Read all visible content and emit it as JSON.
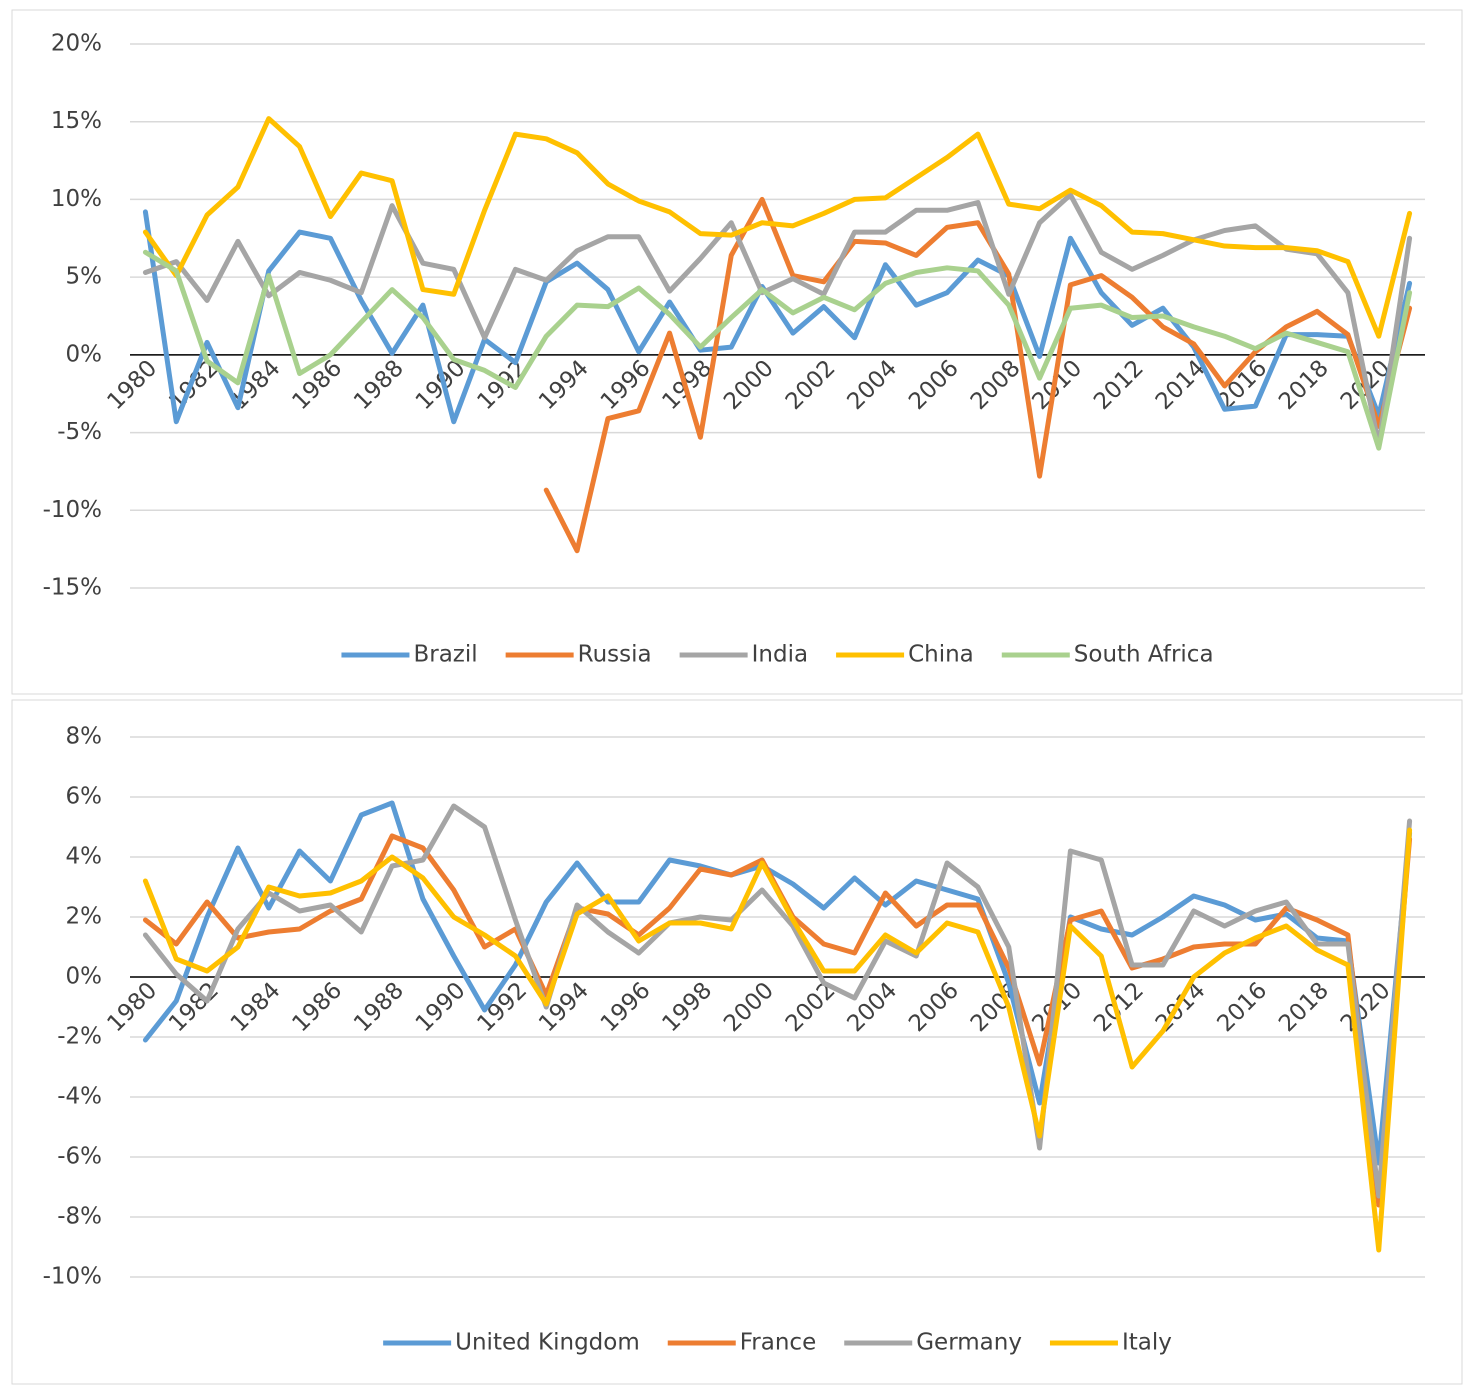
{
  "chart_data": [
    {
      "type": "line",
      "grid": true,
      "legend": "bottom",
      "categories": [
        "1980",
        null,
        "1982",
        null,
        "1984",
        null,
        "1986",
        null,
        "1988",
        null,
        "1990",
        null,
        "1992",
        null,
        "1994",
        null,
        "1996",
        null,
        "1998",
        null,
        "2000",
        null,
        "2002",
        null,
        "2004",
        null,
        "2006",
        null,
        "2008",
        null,
        "2010",
        null,
        "2012",
        null,
        "2014",
        null,
        "2016",
        null,
        "2018",
        null,
        "2020",
        null
      ],
      "ylim": [
        -15,
        20
      ],
      "yticks": [
        {
          "value": -15,
          "label": "-15%"
        },
        {
          "value": -10,
          "label": "-10%"
        },
        {
          "value": -5,
          "label": "-5%"
        },
        {
          "value": 0,
          "label": "0%"
        },
        {
          "value": 5,
          "label": "5%"
        },
        {
          "value": 10,
          "label": "10%"
        },
        {
          "value": 15,
          "label": "15%"
        },
        {
          "value": 20,
          "label": "20%"
        }
      ],
      "series": [
        {
          "name": "Brazil",
          "color": "#5b9bd5",
          "values": [
            9.2,
            -4.3,
            0.8,
            -3.4,
            5.4,
            7.9,
            7.5,
            3.5,
            0.1,
            3.2,
            -4.3,
            1.0,
            -0.5,
            4.7,
            5.9,
            4.2,
            0.2,
            3.4,
            0.3,
            0.5,
            4.4,
            1.4,
            3.1,
            1.1,
            5.8,
            3.2,
            4.0,
            6.1,
            5.1,
            -0.1,
            7.5,
            4.0,
            1.9,
            3.0,
            0.5,
            -3.5,
            -3.3,
            1.3,
            1.3,
            1.2,
            -3.9,
            4.6
          ]
        },
        {
          "name": "Russia",
          "color": "#ed7d31",
          "values": [
            null,
            null,
            null,
            null,
            null,
            null,
            null,
            null,
            null,
            null,
            null,
            null,
            null,
            -8.7,
            -12.6,
            -4.1,
            -3.6,
            1.4,
            -5.3,
            6.4,
            10.0,
            5.1,
            4.7,
            7.3,
            7.2,
            6.4,
            8.2,
            8.5,
            5.2,
            -7.8,
            4.5,
            5.1,
            3.7,
            1.8,
            0.7,
            -2.0,
            0.2,
            1.8,
            2.8,
            1.3,
            -4.6,
            3.0
          ]
        },
        {
          "name": "India",
          "color": "#a5a5a5",
          "values": [
            5.3,
            6.0,
            3.5,
            7.3,
            3.8,
            5.3,
            4.8,
            4.0,
            9.6,
            5.9,
            5.5,
            1.1,
            5.5,
            4.8,
            6.7,
            7.6,
            7.6,
            4.1,
            6.2,
            8.5,
            4.0,
            4.9,
            3.9,
            7.9,
            7.9,
            9.3,
            9.3,
            9.8,
            3.9,
            8.5,
            10.3,
            6.6,
            5.5,
            6.4,
            7.4,
            8.0,
            8.3,
            6.8,
            6.5,
            4.0,
            -5.8,
            7.5
          ]
        },
        {
          "name": "China",
          "color": "#ffc000",
          "values": [
            7.9,
            5.1,
            9.0,
            10.8,
            15.2,
            13.4,
            8.9,
            11.7,
            11.2,
            4.2,
            3.9,
            9.3,
            14.2,
            13.9,
            13.0,
            11.0,
            9.9,
            9.2,
            7.8,
            7.7,
            8.5,
            8.3,
            9.1,
            10.0,
            10.1,
            11.4,
            12.7,
            14.2,
            9.7,
            9.4,
            10.6,
            9.6,
            7.9,
            7.8,
            7.4,
            7.0,
            6.9,
            6.9,
            6.7,
            6.0,
            1.2,
            9.1
          ]
        },
        {
          "name": "South Africa",
          "color": "#a9d18e",
          "values": [
            6.6,
            5.4,
            -0.4,
            -1.8,
            5.1,
            -1.2,
            0.0,
            2.1,
            4.2,
            2.4,
            -0.3,
            -1.0,
            -2.1,
            1.2,
            3.2,
            3.1,
            4.3,
            2.6,
            0.5,
            2.4,
            4.2,
            2.7,
            3.7,
            2.9,
            4.6,
            5.3,
            5.6,
            5.4,
            3.2,
            -1.5,
            3.0,
            3.2,
            2.4,
            2.5,
            1.8,
            1.2,
            0.4,
            1.4,
            0.8,
            0.2,
            -6.0,
            4.0
          ]
        }
      ]
    },
    {
      "type": "line",
      "grid": true,
      "legend": "bottom",
      "categories": [
        "1980",
        null,
        "1982",
        null,
        "1984",
        null,
        "1986",
        null,
        "1988",
        null,
        "1990",
        null,
        "1992",
        null,
        "1994",
        null,
        "1996",
        null,
        "1998",
        null,
        "2000",
        null,
        "2002",
        null,
        "2004",
        null,
        "2006",
        null,
        "2008",
        null,
        "2010",
        null,
        "2012",
        null,
        "2014",
        null,
        "2016",
        null,
        "2018",
        null,
        "2020",
        null
      ],
      "ylim": [
        -10,
        8
      ],
      "yticks": [
        {
          "value": -10,
          "label": "-10%"
        },
        {
          "value": -8,
          "label": "-8%"
        },
        {
          "value": -6,
          "label": "-6%"
        },
        {
          "value": -4,
          "label": "-4%"
        },
        {
          "value": -2,
          "label": "-2%"
        },
        {
          "value": 0,
          "label": "0%"
        },
        {
          "value": 2,
          "label": "2%"
        },
        {
          "value": 4,
          "label": "4%"
        },
        {
          "value": 6,
          "label": "6%"
        },
        {
          "value": 8,
          "label": "8%"
        }
      ],
      "series": [
        {
          "name": "United Kingdom",
          "color": "#5b9bd5",
          "values": [
            -2.1,
            -0.8,
            2.0,
            4.3,
            2.3,
            4.2,
            3.2,
            5.4,
            5.8,
            2.6,
            0.7,
            -1.1,
            0.4,
            2.5,
            3.8,
            2.5,
            2.5,
            3.9,
            3.7,
            3.4,
            3.7,
            3.1,
            2.3,
            3.3,
            2.4,
            3.2,
            2.9,
            2.6,
            -0.2,
            -4.2,
            2.0,
            1.6,
            1.4,
            2.0,
            2.7,
            2.4,
            1.9,
            2.1,
            1.3,
            1.2,
            -6.2,
            4.8
          ]
        },
        {
          "name": "France",
          "color": "#ed7d31",
          "values": [
            1.9,
            1.1,
            2.5,
            1.3,
            1.5,
            1.6,
            2.2,
            2.6,
            4.7,
            4.3,
            2.9,
            1.0,
            1.6,
            -0.6,
            2.3,
            2.1,
            1.4,
            2.3,
            3.6,
            3.4,
            3.9,
            2.0,
            1.1,
            0.8,
            2.8,
            1.7,
            2.4,
            2.4,
            0.3,
            -2.9,
            1.9,
            2.2,
            0.3,
            0.6,
            1.0,
            1.1,
            1.1,
            2.3,
            1.9,
            1.4,
            -7.6,
            4.6
          ]
        },
        {
          "name": "Germany",
          "color": "#a5a5a5",
          "values": [
            1.4,
            0.1,
            -0.8,
            1.6,
            2.8,
            2.2,
            2.4,
            1.5,
            3.7,
            3.9,
            5.7,
            5.0,
            1.9,
            -1.0,
            2.4,
            1.5,
            0.8,
            1.8,
            2.0,
            1.9,
            2.9,
            1.7,
            -0.2,
            -0.7,
            1.2,
            0.7,
            3.8,
            3.0,
            1.0,
            -5.7,
            4.2,
            3.9,
            0.4,
            0.4,
            2.2,
            1.7,
            2.2,
            2.5,
            1.1,
            1.1,
            -7.3,
            5.2
          ]
        },
        {
          "name": "Italy",
          "color": "#ffc000",
          "values": [
            3.2,
            0.6,
            0.2,
            1.0,
            3.0,
            2.7,
            2.8,
            3.2,
            4.0,
            3.3,
            2.0,
            1.4,
            0.7,
            -0.9,
            2.1,
            2.7,
            1.2,
            1.8,
            1.8,
            1.6,
            3.8,
            1.9,
            0.2,
            0.2,
            1.4,
            0.8,
            1.8,
            1.5,
            -1.0,
            -5.3,
            1.7,
            0.7,
            -3.0,
            -1.8,
            0.0,
            0.8,
            1.3,
            1.7,
            0.9,
            0.4,
            -9.1,
            4.9
          ]
        }
      ]
    }
  ]
}
